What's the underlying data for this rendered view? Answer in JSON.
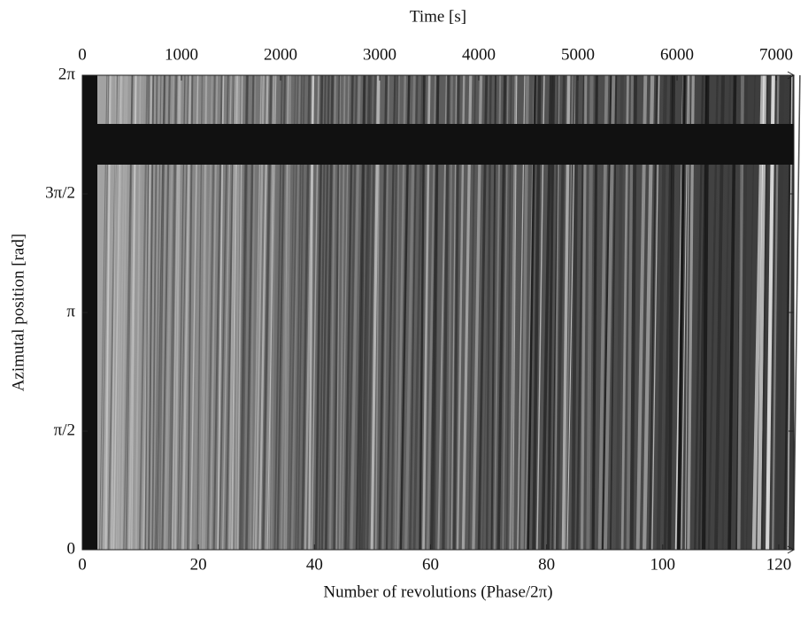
{
  "chart_data": {
    "type": "image",
    "x_label": "Number of revolutions (Phase/2π)",
    "x2_label": "Time [s]",
    "y_label": "Azimutal position [rad]",
    "xlim": [
      0,
      122.6
    ],
    "xticks": [
      0,
      20,
      40,
      60,
      80,
      100,
      120
    ],
    "x2lim": [
      0,
      7178
    ],
    "x2ticks": [
      0,
      1000,
      2000,
      3000,
      4000,
      5000,
      6000,
      7000
    ],
    "ylim": [
      0,
      6.2832
    ],
    "yticks": [
      {
        "value": 0,
        "label": "0"
      },
      {
        "value": 1.5708,
        "label": "π/2"
      },
      {
        "value": 3.1416,
        "label": "π"
      },
      {
        "value": 4.7124,
        "label": "3π/2"
      },
      {
        "value": 6.2832,
        "label": "2π"
      }
    ],
    "colormap": "gray"
  }
}
